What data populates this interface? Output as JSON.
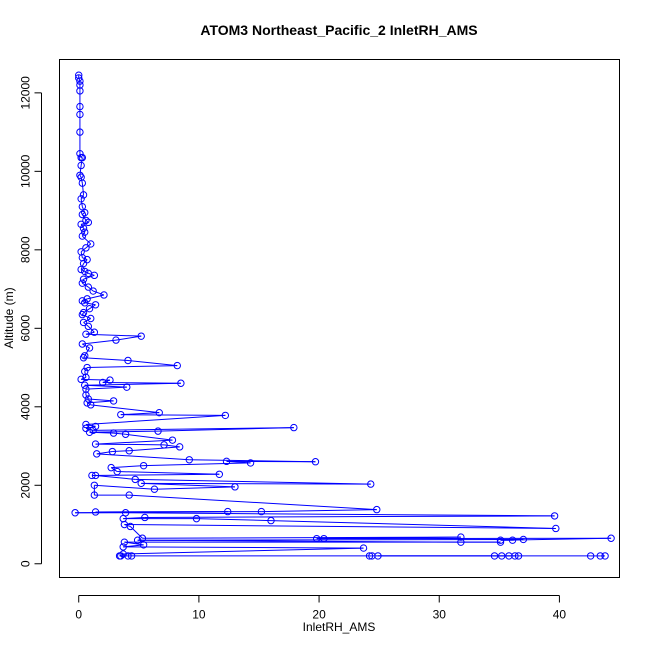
{
  "chart_data": {
    "type": "line",
    "title": "ATOM3 Northeast_Pacific_2 InletRH_AMS",
    "xlabel": "InletRH_AMS",
    "ylabel": "Altitude (m)",
    "xlim": [
      -1.6,
      45.0
    ],
    "ylim": [
      -350,
      12850
    ],
    "xticks": [
      0,
      10,
      20,
      30,
      40
    ],
    "yticks": [
      0,
      2000,
      4000,
      6000,
      8000,
      10000,
      12000
    ],
    "grid": false,
    "markers": "open-circle",
    "line_color": "#0000ff",
    "series": [
      {
        "values": [
          [
            0.0,
            12450
          ],
          [
            0.0,
            12380
          ],
          [
            0.1,
            12300
          ],
          [
            0.1,
            12200
          ],
          [
            0.1,
            12050
          ],
          [
            0.1,
            11650
          ],
          [
            0.1,
            11450
          ],
          [
            0.1,
            11000
          ],
          [
            0.1,
            10450
          ],
          [
            0.2,
            10350
          ],
          [
            0.3,
            10350
          ],
          [
            0.2,
            10150
          ],
          [
            0.1,
            9900
          ],
          [
            0.2,
            9850
          ],
          [
            0.3,
            9700
          ],
          [
            0.4,
            9400
          ],
          [
            0.2,
            9300
          ],
          [
            0.3,
            9100
          ],
          [
            0.5,
            8950
          ],
          [
            0.3,
            8900
          ],
          [
            0.6,
            8750
          ],
          [
            0.8,
            8700
          ],
          [
            0.2,
            8650
          ],
          [
            0.4,
            8550
          ],
          [
            0.5,
            8450
          ],
          [
            0.3,
            8350
          ],
          [
            1.0,
            8150
          ],
          [
            0.6,
            8050
          ],
          [
            0.2,
            7950
          ],
          [
            0.3,
            7800
          ],
          [
            0.7,
            7750
          ],
          [
            0.4,
            7650
          ],
          [
            0.2,
            7500
          ],
          [
            0.5,
            7450
          ],
          [
            0.8,
            7400
          ],
          [
            1.3,
            7350
          ],
          [
            0.4,
            7250
          ],
          [
            0.3,
            7150
          ],
          [
            0.8,
            7050
          ],
          [
            1.2,
            6950
          ],
          [
            2.1,
            6850
          ],
          [
            0.7,
            6750
          ],
          [
            0.3,
            6700
          ],
          [
            0.5,
            6650
          ],
          [
            1.4,
            6600
          ],
          [
            0.9,
            6500
          ],
          [
            0.4,
            6400
          ],
          [
            0.3,
            6350
          ],
          [
            1.0,
            6250
          ],
          [
            0.4,
            6150
          ],
          [
            0.8,
            6050
          ],
          [
            1.3,
            5900
          ],
          [
            0.6,
            5850
          ],
          [
            5.2,
            5800
          ],
          [
            3.1,
            5700
          ],
          [
            0.3,
            5600
          ],
          [
            0.9,
            5500
          ],
          [
            0.5,
            5300
          ],
          [
            0.4,
            5250
          ],
          [
            4.1,
            5180
          ],
          [
            8.2,
            5050
          ],
          [
            0.7,
            5000
          ],
          [
            0.5,
            4900
          ],
          [
            0.6,
            4750
          ],
          [
            0.2,
            4700
          ],
          [
            2.6,
            4680
          ],
          [
            2.0,
            4620
          ],
          [
            8.5,
            4600
          ],
          [
            0.5,
            4550
          ],
          [
            4.0,
            4500
          ],
          [
            0.6,
            4450
          ],
          [
            0.6,
            4300
          ],
          [
            0.8,
            4200
          ],
          [
            2.9,
            4150
          ],
          [
            0.7,
            4100
          ],
          [
            1.0,
            4050
          ],
          [
            6.7,
            3850
          ],
          [
            3.5,
            3800
          ],
          [
            12.2,
            3780
          ],
          [
            0.6,
            3550
          ],
          [
            1.4,
            3500
          ],
          [
            0.6,
            3450
          ],
          [
            1.2,
            3400
          ],
          [
            17.9,
            3470
          ],
          [
            6.6,
            3380
          ],
          [
            0.9,
            3350
          ],
          [
            2.9,
            3330
          ],
          [
            3.9,
            3300
          ],
          [
            7.8,
            3150
          ],
          [
            1.4,
            3050
          ],
          [
            7.1,
            3030
          ],
          [
            8.4,
            2980
          ],
          [
            4.2,
            2880
          ],
          [
            2.8,
            2860
          ],
          [
            1.5,
            2800
          ],
          [
            9.2,
            2650
          ],
          [
            19.7,
            2600
          ],
          [
            12.3,
            2610
          ],
          [
            14.3,
            2570
          ],
          [
            5.4,
            2500
          ],
          [
            2.7,
            2450
          ],
          [
            3.2,
            2350
          ],
          [
            11.7,
            2280
          ],
          [
            1.1,
            2250
          ],
          [
            1.4,
            2250
          ],
          [
            4.7,
            2150
          ],
          [
            24.3,
            2030
          ],
          [
            5.2,
            2050
          ],
          [
            13.0,
            1960
          ],
          [
            6.3,
            1900
          ],
          [
            1.3,
            2000
          ],
          [
            1.3,
            1750
          ],
          [
            4.2,
            1750
          ],
          [
            24.8,
            1380
          ],
          [
            15.2,
            1330
          ],
          [
            1.4,
            1320
          ],
          [
            12.4,
            1330
          ],
          [
            -0.3,
            1300
          ],
          [
            3.9,
            1300
          ],
          [
            39.6,
            1220
          ],
          [
            5.5,
            1180
          ],
          [
            3.7,
            1150
          ],
          [
            9.8,
            1150
          ],
          [
            16.0,
            1100
          ],
          [
            39.7,
            900
          ],
          [
            3.8,
            1000
          ],
          [
            4.3,
            950
          ],
          [
            5.3,
            650
          ],
          [
            31.8,
            680
          ],
          [
            20.4,
            640
          ],
          [
            19.8,
            640
          ],
          [
            44.3,
            650
          ],
          [
            35.1,
            600
          ],
          [
            36.1,
            600
          ],
          [
            37.0,
            620
          ],
          [
            4.9,
            600
          ],
          [
            31.8,
            550
          ],
          [
            35.1,
            550
          ],
          [
            3.8,
            550
          ],
          [
            5.4,
            480
          ],
          [
            3.7,
            430
          ],
          [
            23.7,
            400
          ],
          [
            3.7,
            250
          ],
          [
            3.4,
            200
          ],
          [
            3.5,
            200
          ],
          [
            4.1,
            200
          ],
          [
            4.4,
            200
          ],
          [
            24.2,
            200
          ],
          [
            24.4,
            200
          ],
          [
            34.6,
            200
          ],
          [
            35.2,
            200
          ],
          [
            35.8,
            200
          ],
          [
            36.3,
            200
          ],
          [
            24.9,
            200
          ],
          [
            36.6,
            200
          ],
          [
            42.6,
            200
          ],
          [
            43.4,
            200
          ],
          [
            43.8,
            200
          ]
        ]
      }
    ]
  }
}
